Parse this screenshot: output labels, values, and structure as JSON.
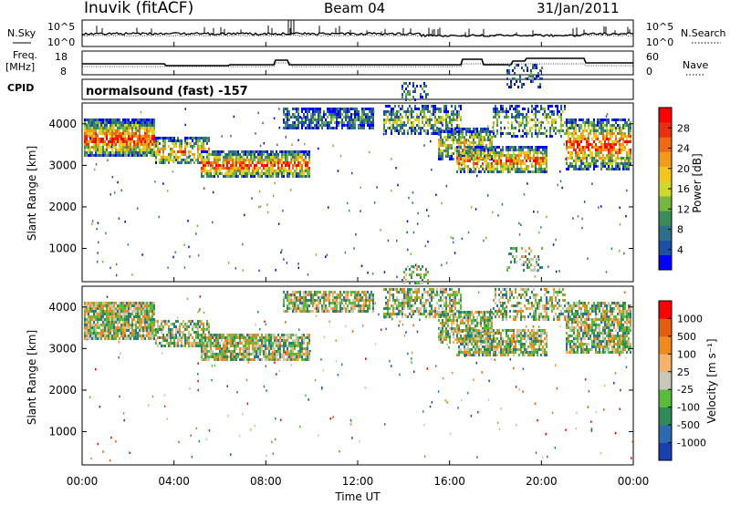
{
  "header": {
    "station": "Inuvik (fitACF)",
    "beam": "Beam 04",
    "date": "31/Jan/2011"
  },
  "noise_panel": {
    "left_label": "N.Sky",
    "right_label": "N.Search",
    "left_ticks": [
      "10^5",
      "10^0"
    ],
    "right_ticks": [
      "10^5",
      "10^0"
    ]
  },
  "freq_panel": {
    "left_label_1": "Freq.",
    "left_label_2": "[MHz]",
    "right_label": "Nave",
    "left_ticks": [
      "18",
      "8"
    ],
    "right_ticks": [
      "60",
      "0"
    ]
  },
  "cpid": {
    "label": "CPID",
    "value": "normalsound (fast) -157"
  },
  "chart_data": [
    {
      "type": "heatmap",
      "name": "power",
      "ylabel": "Slant Range [km]",
      "xlabel": "Time UT",
      "y_ticks": [
        "1000",
        "2000",
        "3000",
        "4000"
      ],
      "ylim": [
        200,
        4500
      ],
      "colorbar": {
        "label": "Power [dB]",
        "ticks": [
          "28",
          "24",
          "20",
          "16",
          "12",
          "8",
          "4"
        ],
        "colors": [
          "#0000ff",
          "#1e4fa8",
          "#2e6e8a",
          "#3c8c5a",
          "#76b83c",
          "#cfd92a",
          "#f5c518",
          "#f29a1a",
          "#f06a14",
          "#e8300e",
          "#ff0000"
        ]
      }
    },
    {
      "type": "heatmap",
      "name": "velocity",
      "ylabel": "Slant Range [km]",
      "xlabel": "Time UT",
      "y_ticks": [
        "1000",
        "2000",
        "3000",
        "4000"
      ],
      "ylim": [
        200,
        4500
      ],
      "colorbar": {
        "label": "Velocity [m s⁻¹]",
        "ticks": [
          "1000",
          "500",
          "100",
          "25",
          "-25",
          "-100",
          "-500",
          "-1000"
        ],
        "colors": [
          "#1a3fb0",
          "#2c6bb0",
          "#2e8a56",
          "#59bb3a",
          "#c8c8b8",
          "#f5b26b",
          "#f08a1c",
          "#e85a10",
          "#ff0000"
        ]
      }
    }
  ],
  "x_axis": {
    "ticks": [
      "00:00",
      "04:00",
      "08:00",
      "12:00",
      "16:00",
      "20:00",
      "00:00"
    ],
    "label": "Time UT"
  }
}
